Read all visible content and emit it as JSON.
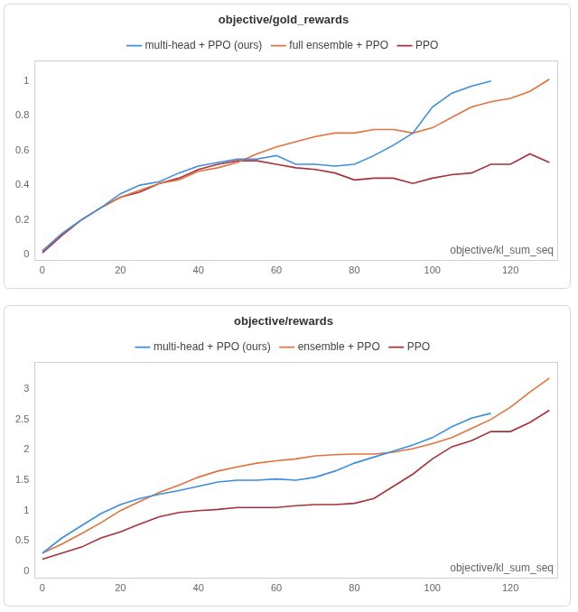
{
  "chart_data": [
    {
      "type": "line",
      "title": "objective/gold_rewards",
      "x_label": "objective/kl_sum_seq",
      "x": [
        0,
        5,
        10,
        15,
        20,
        25,
        30,
        35,
        40,
        45,
        50,
        55,
        60,
        65,
        70,
        75,
        80,
        85,
        90,
        95,
        100,
        105,
        110,
        115,
        120,
        125,
        130
      ],
      "series": [
        {
          "name": "multi-head + PPO (ours)",
          "color": "#3d8ee0",
          "values": [
            0.02,
            0.12,
            0.2,
            0.27,
            0.35,
            0.4,
            0.42,
            0.47,
            0.51,
            0.53,
            0.55,
            0.55,
            0.57,
            0.52,
            0.52,
            0.51,
            0.52,
            0.57,
            0.63,
            0.7,
            0.85,
            0.93,
            0.97,
            1.0,
            null,
            null,
            null
          ]
        },
        {
          "name": "full ensemble + PPO",
          "color": "#e2733e",
          "values": [
            0.02,
            0.12,
            0.2,
            0.27,
            0.33,
            0.37,
            0.41,
            0.43,
            0.48,
            0.5,
            0.53,
            0.58,
            0.62,
            0.65,
            0.68,
            0.7,
            0.7,
            0.72,
            0.72,
            0.7,
            0.73,
            0.79,
            0.85,
            0.88,
            0.9,
            0.94,
            1.01
          ]
        },
        {
          "name": "PPO",
          "color": "#a8323a",
          "values": [
            0.01,
            0.11,
            0.2,
            0.27,
            0.33,
            0.36,
            0.41,
            0.44,
            0.49,
            0.52,
            0.54,
            0.54,
            0.52,
            0.5,
            0.49,
            0.47,
            0.43,
            0.44,
            0.44,
            0.41,
            0.44,
            0.46,
            0.47,
            0.52,
            0.52,
            0.58,
            0.53
          ]
        }
      ],
      "xlim": [
        -2,
        132
      ],
      "xticks": [
        0,
        20,
        40,
        60,
        80,
        100,
        120
      ],
      "ylim": [
        -0.03,
        1.12
      ],
      "yticks": [
        0,
        0.2,
        0.4,
        0.6,
        0.8,
        1
      ],
      "grid": false,
      "legend": "top"
    },
    {
      "type": "line",
      "title": "objective/rewards",
      "x_label": "objective/kl_sum_seq",
      "x": [
        0,
        5,
        10,
        15,
        20,
        25,
        30,
        35,
        40,
        45,
        50,
        55,
        60,
        65,
        70,
        75,
        80,
        85,
        90,
        95,
        100,
        105,
        110,
        115,
        120,
        125,
        130
      ],
      "series": [
        {
          "name": "multi-head + PPO (ours)",
          "color": "#3d8ee0",
          "values": [
            0.3,
            0.55,
            0.75,
            0.95,
            1.1,
            1.2,
            1.27,
            1.33,
            1.4,
            1.47,
            1.5,
            1.5,
            1.52,
            1.5,
            1.55,
            1.65,
            1.78,
            1.88,
            1.98,
            2.08,
            2.2,
            2.38,
            2.52,
            2.6,
            null,
            null,
            null
          ]
        },
        {
          "name": "ensemble + PPO",
          "color": "#e2733e",
          "values": [
            0.3,
            0.45,
            0.62,
            0.8,
            1.0,
            1.15,
            1.3,
            1.42,
            1.55,
            1.65,
            1.72,
            1.78,
            1.82,
            1.85,
            1.9,
            1.92,
            1.93,
            1.93,
            1.96,
            2.02,
            2.1,
            2.2,
            2.35,
            2.5,
            2.7,
            2.95,
            3.18
          ]
        },
        {
          "name": "PPO",
          "color": "#a8323a",
          "values": [
            0.2,
            0.3,
            0.4,
            0.55,
            0.65,
            0.78,
            0.9,
            0.97,
            1.0,
            1.02,
            1.05,
            1.05,
            1.05,
            1.08,
            1.1,
            1.1,
            1.12,
            1.2,
            1.4,
            1.6,
            1.85,
            2.05,
            2.15,
            2.3,
            2.3,
            2.45,
            2.65
          ]
        }
      ],
      "xlim": [
        -2,
        132
      ],
      "xticks": [
        0,
        20,
        40,
        60,
        80,
        100,
        120
      ],
      "ylim": [
        -0.1,
        3.45
      ],
      "yticks": [
        0,
        0.5,
        1,
        1.5,
        2,
        2.5,
        3
      ],
      "grid": false,
      "legend": "top"
    }
  ]
}
